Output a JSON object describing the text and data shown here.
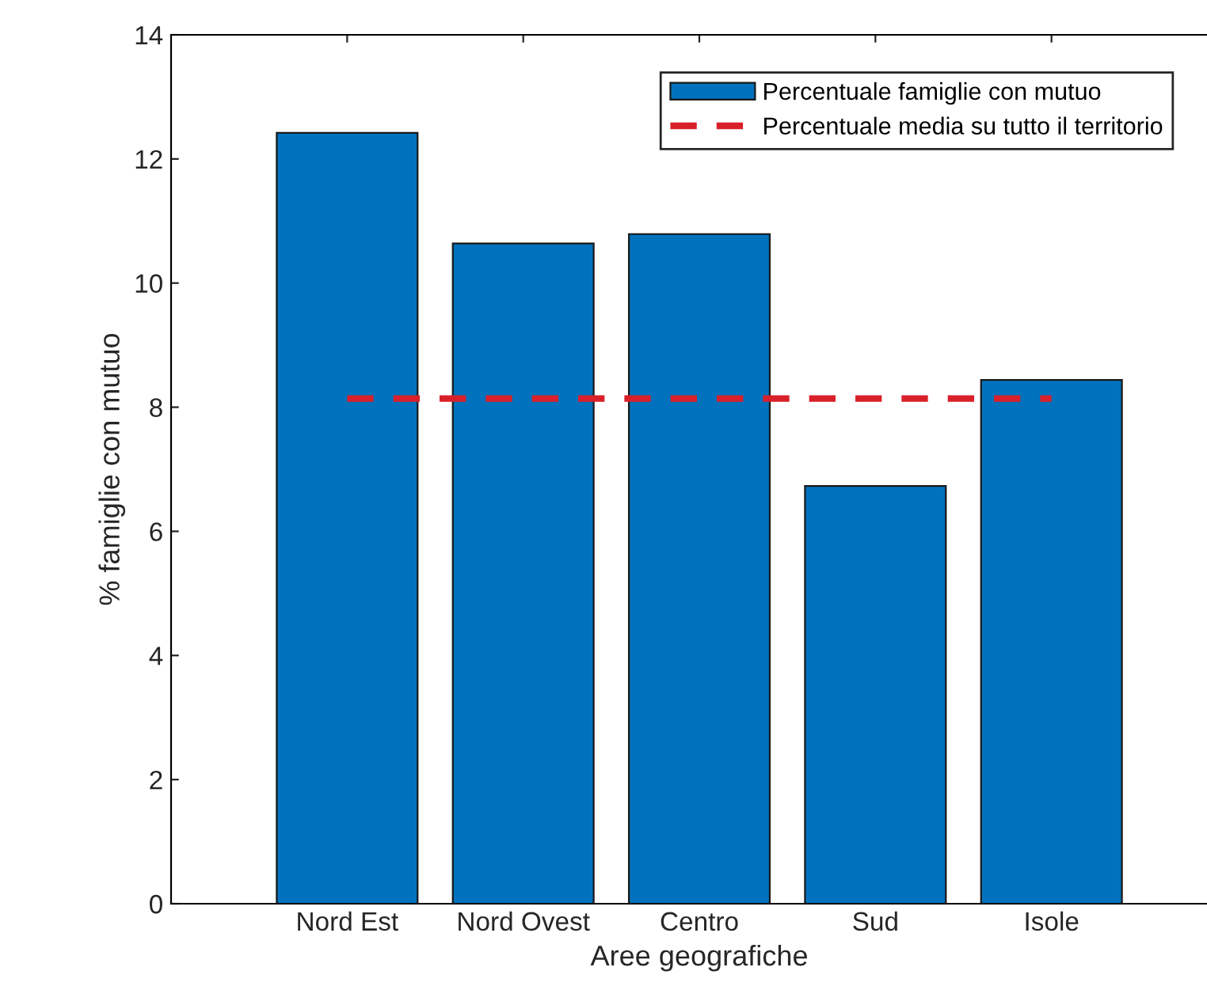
{
  "chart_data": {
    "type": "bar",
    "xlabel": "Aree geografiche",
    "ylabel": "% famiglie con mutuo",
    "categories": [
      "Nord Est",
      "Nord Ovest",
      "Centro",
      "Sud",
      "Isole"
    ],
    "series": [
      {
        "name": "Percentuale famiglie con mutuo",
        "color": "#0072bd",
        "values": [
          12.42,
          10.64,
          10.79,
          6.73,
          8.44
        ]
      },
      {
        "name": "Percentuale media su tutto il territorio",
        "type": "line",
        "line_style": "dashed",
        "color": "#d9202a",
        "values": [
          8.14,
          8.14,
          8.14,
          8.14,
          8.14
        ]
      }
    ],
    "ylim": [
      0,
      14
    ],
    "yticks": [
      0,
      2,
      4,
      6,
      8,
      10,
      12,
      14
    ],
    "grid": false,
    "legend": "top right"
  }
}
